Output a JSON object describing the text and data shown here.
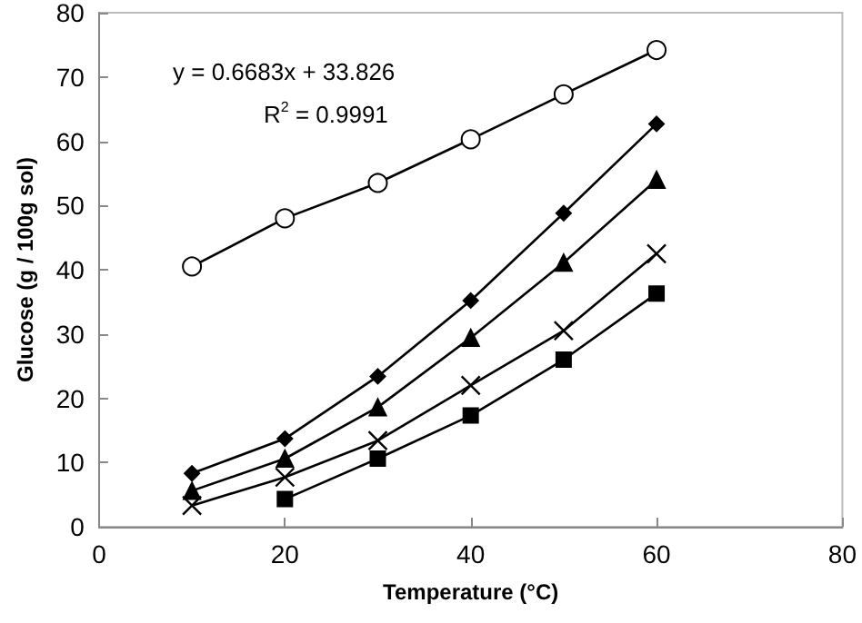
{
  "chart_data": {
    "type": "line",
    "xlabel": "Temperature (°C)",
    "ylabel": "Glucose (g / 100g sol)",
    "x": [
      10,
      20,
      30,
      40,
      50,
      60
    ],
    "xlim": [
      0,
      80
    ],
    "xticks": [
      0,
      20,
      40,
      60,
      80
    ],
    "ylim": [
      0,
      80
    ],
    "yticks": [
      0,
      10,
      20,
      30,
      40,
      50,
      60,
      70,
      80
    ],
    "grid": false,
    "annotations": [
      "y = 0.6683x + 33.826",
      "R$^{2}$ = 0.9991"
    ],
    "series": [
      {
        "color": "#000000",
        "marker": "circle",
        "values": [
          40.5,
          48,
          53.5,
          60.3,
          67.3,
          74.2
        ]
      },
      {
        "color": "#000000",
        "marker": "diamond",
        "values": [
          8.3,
          13.7,
          23.4,
          35.2,
          48.8,
          62.7
        ]
      },
      {
        "color": "#000000",
        "marker": "triangle",
        "values": [
          5.6,
          10.6,
          18.6,
          29.4,
          41.1,
          54
        ]
      },
      {
        "color": "#000000",
        "marker": "cross",
        "values": [
          3.3,
          7.7,
          13.4,
          22,
          30.5,
          42.5
        ]
      },
      {
        "color": "#000000",
        "marker": "square",
        "values": [
          null,
          4.3,
          10.6,
          17.3,
          26,
          36.3
        ]
      }
    ]
  }
}
